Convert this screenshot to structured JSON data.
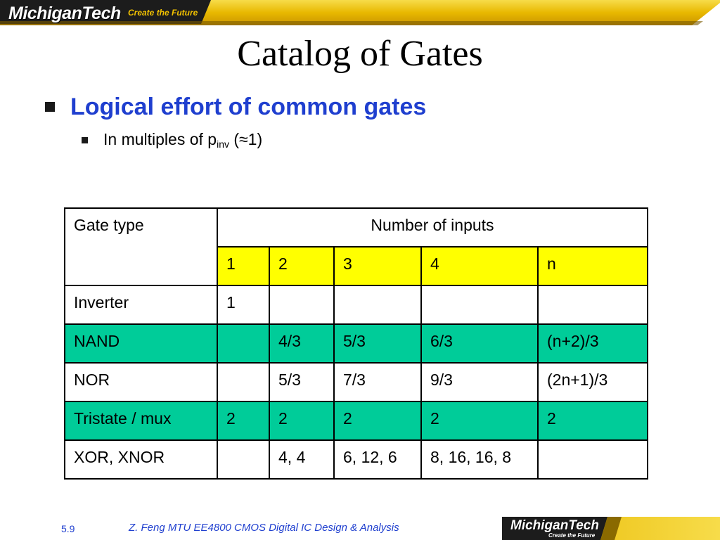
{
  "header": {
    "logo_text": "MichiganTech",
    "tagline": "Create the Future"
  },
  "slide": {
    "title": "Catalog of Gates",
    "bullet_main": "Logical effort of common gates",
    "bullet_sub_prefix": "In multiples of p",
    "bullet_sub_subscript": "inv",
    "bullet_sub_suffix": " (≈1)"
  },
  "table": {
    "header_gate_type": "Gate type",
    "header_number_of_inputs": "Number of inputs",
    "input_columns": [
      "1",
      "2",
      "3",
      "4",
      "n"
    ],
    "rows": [
      {
        "gate": "Inverter",
        "values": [
          "1",
          "",
          "",
          "",
          ""
        ]
      },
      {
        "gate": "NAND",
        "values": [
          "",
          "4/3",
          "5/3",
          "6/3",
          "(n+2)/3"
        ]
      },
      {
        "gate": "NOR",
        "values": [
          "",
          "5/3",
          "7/3",
          "9/3",
          "(2n+1)/3"
        ]
      },
      {
        "gate": "Tristate / mux",
        "values": [
          "2",
          "2",
          "2",
          "2",
          "2"
        ]
      },
      {
        "gate": "XOR, XNOR",
        "values": [
          "",
          "4, 4",
          "6, 12, 6",
          "8, 16, 16, 8",
          ""
        ]
      }
    ]
  },
  "footer": {
    "slide_number": "5.9",
    "course_text": "Z. Feng  MTU EE4800 CMOS Digital IC Design & Analysis",
    "logo_text": "MichiganTech",
    "tagline": "Create the Future"
  },
  "colors": {
    "accent_blue": "#1f3fcf",
    "highlight_yellow": "#ffff00",
    "highlight_green": "#00cc99",
    "brand_gold": "#f2c200"
  }
}
